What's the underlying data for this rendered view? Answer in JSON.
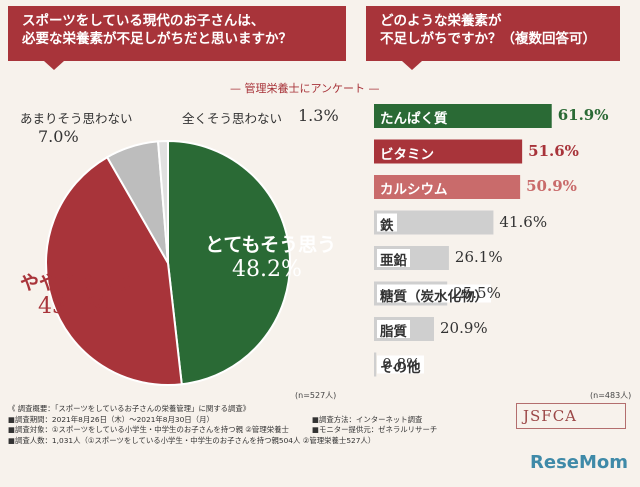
{
  "header_left": {
    "line1": "スポーツをしている現代のお子さんは、",
    "line2": "必要な栄養素が不足しがちだと思いますか？"
  },
  "header_right": {
    "line1": "どのような栄養素が",
    "line2": "不足しがちですか？（複数回答可）"
  },
  "subtitle": "— 管理栄養士にアンケート —",
  "pie_n": "(n=527人)",
  "bar_n": "(n=483人)",
  "chart_data": [
    {
      "type": "pie",
      "slices": [
        {
          "label": "とてもそう思う",
          "value": 48.2,
          "display": "48.2%",
          "color": "#2a6a35"
        },
        {
          "label": "ややそう思う",
          "value": 43.5,
          "display": "43.5%",
          "color": "#a8343a"
        },
        {
          "label": "あまりそう思わない",
          "value": 7.0,
          "display": "7.0%",
          "color": "#bdbdbd"
        },
        {
          "label": "全くそう思わない",
          "value": 1.3,
          "display": "1.3%",
          "color": "#e0e0e0"
        }
      ]
    },
    {
      "type": "bar",
      "categories": [
        "たんぱく質",
        "ビタミン",
        "カルシウム",
        "鉄",
        "亜鉛",
        "糖質（炭水化物）",
        "脂質",
        "その他"
      ],
      "values": [
        61.9,
        51.6,
        50.9,
        41.6,
        26.1,
        25.5,
        20.9,
        0.8
      ],
      "display": [
        "61.9%",
        "51.6%",
        "50.9%",
        "41.6%",
        "26.1%",
        "25.5%",
        "20.9%",
        "0.8%"
      ],
      "colors": [
        "#2a6a35",
        "#a8343a",
        "#c96b6b",
        "#cfcfcf",
        "#cfcfcf",
        "#cfcfcf",
        "#cfcfcf",
        "#cfcfcf"
      ],
      "label_colors": [
        "#ffffff",
        "#ffffff",
        "#ffffff",
        "#333333",
        "#333333",
        "#333333",
        "#333333",
        "#333333"
      ],
      "value_colors": [
        "#2a6a35",
        "#a8343a",
        "#c96b6b",
        "#333333",
        "#333333",
        "#333333",
        "#333333",
        "#333333"
      ]
    }
  ],
  "footer": {
    "l1": "《 調査概要：「スポーツをしているお子さんの栄養管理」に関する調査》",
    "l2": "■調査期間：2021年8月26日（木）～2021年8月30日（月）",
    "l3": "■調査対象：①スポーツをしている小学生・中学生のお子さんを持つ親 ②管理栄養士",
    "l4": "■調査人数：1,031人（①スポーツをしている小学生・中学生のお子さんを持つ親504人 ②管理栄養士527人）",
    "r1": "■調査方法：インターネット調査",
    "r2": "■モニター提供元：ゼネラルリサーチ"
  },
  "logo_jsfca": "JSFCA",
  "logo_resemom": "ReseMom"
}
